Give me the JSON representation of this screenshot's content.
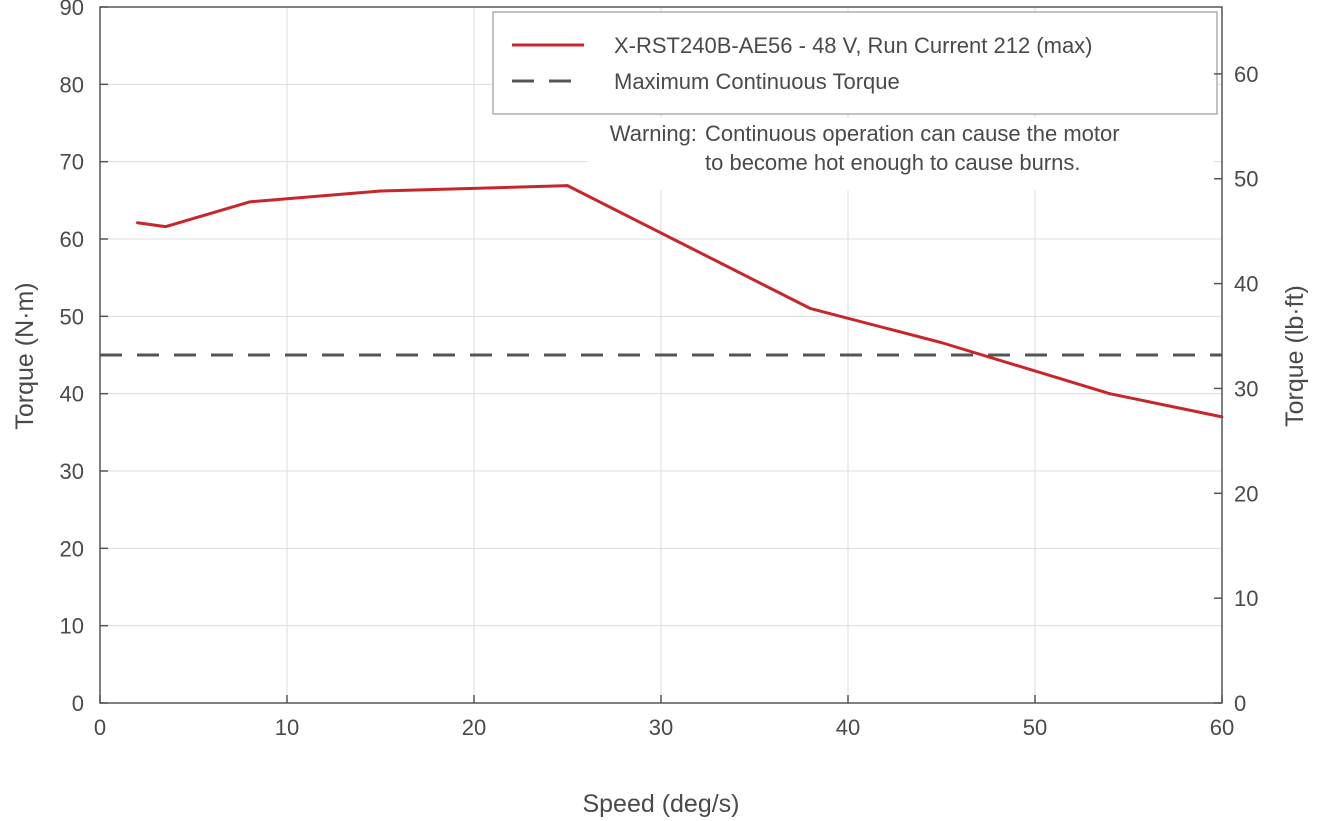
{
  "chart_data": {
    "type": "line",
    "title": "",
    "xlabel": "Speed (deg/s)",
    "ylabel": "Torque (N·m)",
    "ylabel_right": "Torque (lb·ft)",
    "xlim": [
      0,
      60
    ],
    "ylim": [
      0,
      90
    ],
    "ylim_right": [
      0,
      66.38
    ],
    "x_ticks": [
      "0",
      "10",
      "20",
      "30",
      "40",
      "50",
      "60"
    ],
    "y_ticks": [
      "0",
      "10",
      "20",
      "30",
      "40",
      "50",
      "60",
      "70",
      "80",
      "90"
    ],
    "y_right_ticks": [
      "0",
      "10",
      "20",
      "30",
      "40",
      "50",
      "60"
    ],
    "grid": true,
    "legend_position": "top-right",
    "colors": {
      "series": "#c8262b",
      "reference": "#555555",
      "grid": "#dddddd",
      "axis": "#555555"
    },
    "series": [
      {
        "name": "X-RST240B-AE56 - 48 V, Run Current 212 (max)",
        "style": "solid",
        "x": [
          2,
          3.5,
          8,
          15,
          25,
          38,
          45,
          54,
          60
        ],
        "y": [
          62.1,
          61.6,
          64.8,
          66.2,
          66.9,
          51.0,
          46.6,
          40.0,
          37.0
        ]
      }
    ],
    "reference_lines": [
      {
        "name": "Maximum Continuous Torque",
        "style": "dashed",
        "y": 45
      }
    ],
    "annotation": {
      "label": "Warning:",
      "lines": [
        "Continuous operation can cause the motor",
        "to become hot enough to cause burns."
      ]
    }
  }
}
